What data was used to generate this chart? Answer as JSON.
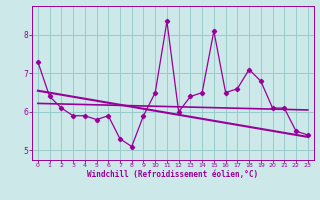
{
  "x": [
    0,
    1,
    2,
    3,
    4,
    5,
    6,
    7,
    8,
    9,
    10,
    11,
    12,
    13,
    14,
    15,
    16,
    17,
    18,
    19,
    20,
    21,
    22,
    23
  ],
  "line1": [
    7.3,
    6.4,
    6.1,
    5.9,
    5.9,
    5.8,
    5.9,
    5.3,
    5.1,
    5.9,
    6.5,
    8.35,
    6.0,
    6.4,
    6.5,
    8.1,
    6.5,
    6.6,
    7.1,
    6.8,
    6.1,
    6.1,
    5.5,
    5.4
  ],
  "trend1_x": [
    0,
    23
  ],
  "trend1_y": [
    6.22,
    6.05
  ],
  "trend2_x": [
    0,
    23
  ],
  "trend2_y": [
    6.55,
    5.35
  ],
  "line_color": "#990099",
  "bg_color": "#cce8e8",
  "grid_color": "#99cccc",
  "xlabel": "Windchill (Refroidissement éolien,°C)",
  "ylim": [
    4.75,
    8.75
  ],
  "xlim": [
    -0.5,
    23.5
  ],
  "yticks": [
    5,
    6,
    7,
    8
  ],
  "xticks": [
    0,
    1,
    2,
    3,
    4,
    5,
    6,
    7,
    8,
    9,
    10,
    11,
    12,
    13,
    14,
    15,
    16,
    17,
    18,
    19,
    20,
    21,
    22,
    23
  ]
}
